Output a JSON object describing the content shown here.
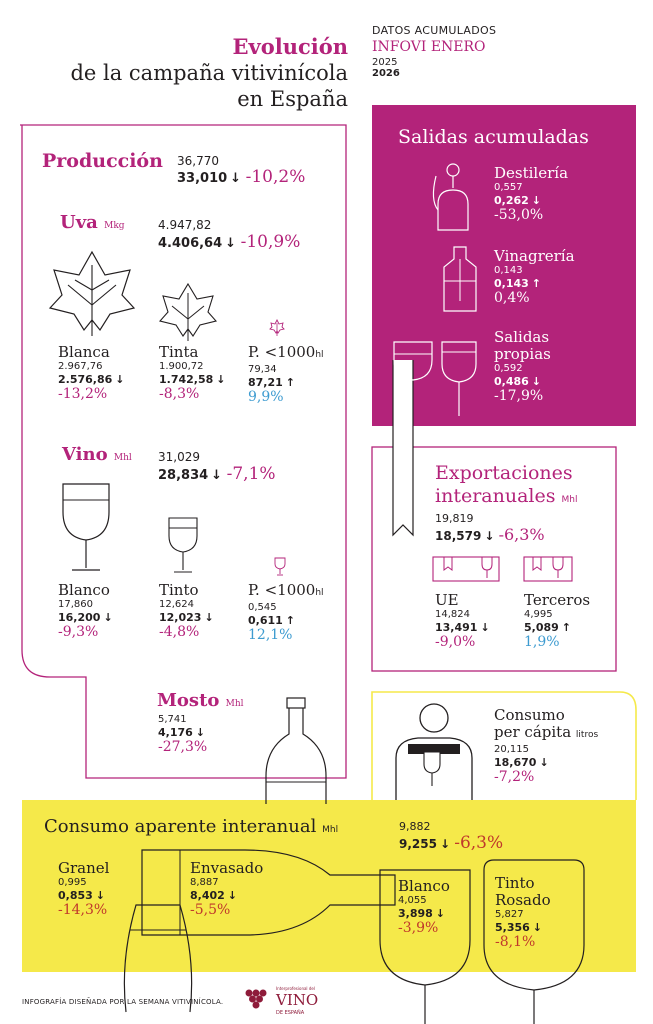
{
  "header": {
    "title_line1": "Evolución",
    "title_line2": "de la campaña vitivinícola",
    "title_line3": "en España",
    "datos_label": "DATOS ACUMULADOS",
    "source": "INFOVI ENERO",
    "year_prev": "2025",
    "year_curr": "2026"
  },
  "produccion": {
    "label": "Producción",
    "prev": "36,770",
    "curr": "33,010",
    "change": "-10,2%"
  },
  "uva": {
    "label": "Uva",
    "unit": "Mkg",
    "prev": "4.947,82",
    "curr": "4.406,64",
    "change": "-10,9%",
    "blanca": {
      "label": "Blanca",
      "prev": "2.967,76",
      "curr": "2.576,86",
      "change": "-13,2%"
    },
    "tinta": {
      "label": "Tinta",
      "prev": "1.900,72",
      "curr": "1.742,58",
      "change": "-8,3%"
    },
    "pequena": {
      "label": "P. <1000",
      "unit": "hl",
      "prev": "79,34",
      "curr": "87,21",
      "change": "9,9%"
    }
  },
  "vino": {
    "label": "Vino",
    "unit": "Mhl",
    "prev": "31,029",
    "curr": "28,834",
    "change": "-7,1%",
    "blanco": {
      "label": "Blanco",
      "prev": "17,860",
      "curr": "16,200",
      "change": "-9,3%"
    },
    "tinto": {
      "label": "Tinto",
      "prev": "12,624",
      "curr": "12,023",
      "change": "-4,8%"
    },
    "pequena": {
      "label": "P. <1000",
      "unit": "hl",
      "prev": "0,545",
      "curr": "0,611",
      "change": "12,1%"
    }
  },
  "mosto": {
    "label": "Mosto",
    "unit": "Mhl",
    "prev": "5,741",
    "curr": "4,176",
    "change": "-27,3%"
  },
  "salidas": {
    "title": "Salidas acumuladas",
    "destileria": {
      "label": "Destilería",
      "prev": "0,557",
      "curr": "0,262",
      "change": "-53,0%"
    },
    "vinagreria": {
      "label": "Vinagrería",
      "prev": "0,143",
      "curr": "0,143",
      "change": "0,4%"
    },
    "propias": {
      "label_line1": "Salidas",
      "label_line2": "propias",
      "prev": "0,592",
      "curr": "0,486",
      "change": "-17,9%"
    }
  },
  "exportaciones": {
    "title_line1": "Exportaciones",
    "title_line2": "interanuales",
    "unit": "Mhl",
    "prev": "19,819",
    "curr": "18,579",
    "change": "-6,3%",
    "ue": {
      "label": "UE",
      "prev": "14,824",
      "curr": "13,491",
      "change": "-9,0%"
    },
    "terceros": {
      "label": "Terceros",
      "prev": "4,995",
      "curr": "5,089",
      "change": "1,9%"
    }
  },
  "consumo_pc": {
    "label_line1": "Consumo",
    "label_line2": "per cápita",
    "unit": "litros",
    "prev": "20,115",
    "curr": "18,670",
    "change": "-7,2%"
  },
  "consumo_aparente": {
    "title": "Consumo aparente interanual",
    "unit": "Mhl",
    "prev": "9,882",
    "curr": "9,255",
    "change": "-6,3%",
    "granel": {
      "label": "Granel",
      "prev": "0,995",
      "curr": "0,853",
      "change": "-14,3%"
    },
    "envasado": {
      "label": "Envasado",
      "prev": "8,887",
      "curr": "8,402",
      "change": "-5,5%"
    },
    "blanco": {
      "label": "Blanco",
      "prev": "4,055",
      "curr": "3,898",
      "change": "-3,9%"
    },
    "tinto": {
      "label_line1": "Tinto",
      "label_line2": "Rosado",
      "prev": "5,827",
      "curr": "5,356",
      "change": "-8,1%"
    }
  },
  "footer": {
    "credit": "INFOGRAFÍA DISEÑADA POR LA SEMANA VITIVINÍCOLA.",
    "logo_small": "Interprofesional del",
    "logo_main": "VINO",
    "logo_sub": "DE ESPAÑA"
  },
  "colors": {
    "magenta": "#b3237a",
    "yellow": "#f5e94a",
    "blue": "#3d9bd0",
    "red": "#c0392b"
  }
}
